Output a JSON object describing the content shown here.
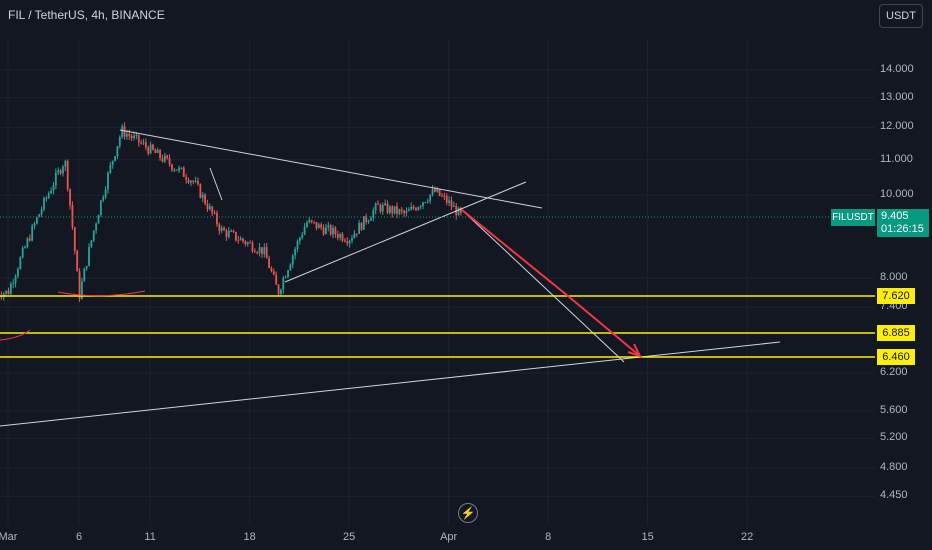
{
  "header": {
    "title": "FIL / TetherUS, 4h, BINANCE",
    "currency_button": "USDT"
  },
  "symbol_label": "FILUSDT",
  "current_price": {
    "value": "9.405",
    "countdown": "01:26:15"
  },
  "price_axis": [
    "14.000",
    "13.000",
    "12.000",
    "11.000",
    "10.000",
    "8.000",
    "7.400",
    "6.200",
    "5.600",
    "5.200",
    "4.800",
    "4.450"
  ],
  "time_axis": [
    "Mar",
    "6",
    "11",
    "18",
    "25",
    "Apr",
    "8",
    "15",
    "22"
  ],
  "horizontal_levels": [
    {
      "label": "7.620",
      "color": "#fcee09"
    },
    {
      "label": "6.885",
      "color": "#fcee09"
    },
    {
      "label": "6.460",
      "color": "#fcee09"
    }
  ],
  "colors": {
    "bull": "#26a69a",
    "bear": "#ef5350",
    "arrow": "#f23645",
    "trendline": "#d1d4dc",
    "level": "#fcee09",
    "background": "#131722"
  },
  "icons": {
    "logo": "tradingview-logo-icon"
  },
  "chart_data": {
    "type": "candlestick",
    "title": "FIL / TetherUS, 4h, BINANCE",
    "ylabel": "USDT",
    "y_scale": "log",
    "ylim": [
      4.3,
      15.5
    ],
    "x_range": [
      "Mar 1",
      "Apr 25"
    ],
    "grid": true,
    "current_price": 9.405,
    "key_points": [
      {
        "date": "Mar 1",
        "price": 7.7
      },
      {
        "date": "Mar 5",
        "price": 11.0
      },
      {
        "date": "Mar 6",
        "price": 7.6
      },
      {
        "date": "Mar 8",
        "price": 10.5
      },
      {
        "date": "Mar 9",
        "price": 11.9
      },
      {
        "date": "Mar 12",
        "price": 11.0
      },
      {
        "date": "Mar 14",
        "price": 10.4
      },
      {
        "date": "Mar 16",
        "price": 9.1
      },
      {
        "date": "Mar 19",
        "price": 8.6
      },
      {
        "date": "Mar 20",
        "price": 7.7
      },
      {
        "date": "Mar 22",
        "price": 9.3
      },
      {
        "date": "Mar 25",
        "price": 8.9
      },
      {
        "date": "Mar 27",
        "price": 9.7
      },
      {
        "date": "Mar 29",
        "price": 9.5
      },
      {
        "date": "Mar 31",
        "price": 10.1
      },
      {
        "date": "Apr 1",
        "price": 9.8
      },
      {
        "date": "Apr 2",
        "price": 9.405
      }
    ],
    "levels": [
      7.62,
      6.885,
      6.46
    ],
    "projection": [
      {
        "date": "Apr 2",
        "price": 9.7
      },
      {
        "date": "Apr 15",
        "price": 6.3
      }
    ]
  }
}
